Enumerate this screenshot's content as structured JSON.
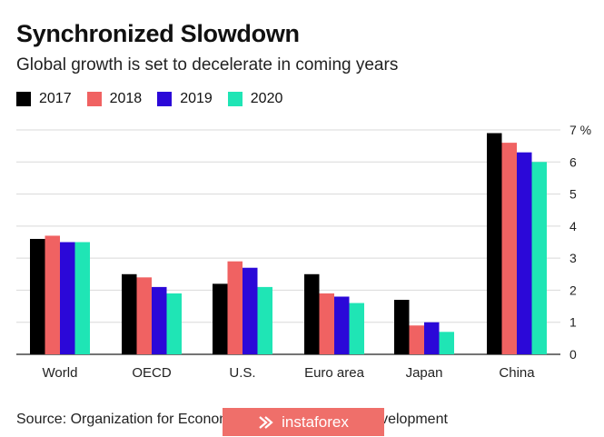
{
  "title": "Synchronized Slowdown",
  "subtitle": "Global growth is set to decelerate in coming years",
  "source": "Source: Organization for Economic Co-operation and Development",
  "watermark": {
    "text": "instaforex",
    "icon": "chevron-arrow-icon",
    "color": "#ef6f6a"
  },
  "chart_data": {
    "type": "bar",
    "title": "Synchronized Slowdown",
    "subtitle": "Global growth is set to decelerate in coming years",
    "categories": [
      "World",
      "OECD",
      "U.S.",
      "Euro area",
      "Japan",
      "China"
    ],
    "series": [
      {
        "name": "2017",
        "color": "#000000",
        "values": [
          3.6,
          2.5,
          2.2,
          2.5,
          1.7,
          6.9
        ]
      },
      {
        "name": "2018",
        "color": "#f06262",
        "values": [
          3.7,
          2.4,
          2.9,
          1.9,
          0.9,
          6.6
        ]
      },
      {
        "name": "2019",
        "color": "#2b08d8",
        "values": [
          3.5,
          2.1,
          2.7,
          1.8,
          1.0,
          6.3
        ]
      },
      {
        "name": "2020",
        "color": "#1fe5b5",
        "values": [
          3.5,
          1.9,
          2.1,
          1.6,
          0.7,
          6.0
        ]
      }
    ],
    "y_ticks": [
      "0",
      "1",
      "2",
      "3",
      "4",
      "5",
      "6",
      "7 %"
    ],
    "ylim": [
      0,
      7
    ],
    "y_axis_position": "right",
    "grid": true,
    "legend_position": "top-left"
  }
}
